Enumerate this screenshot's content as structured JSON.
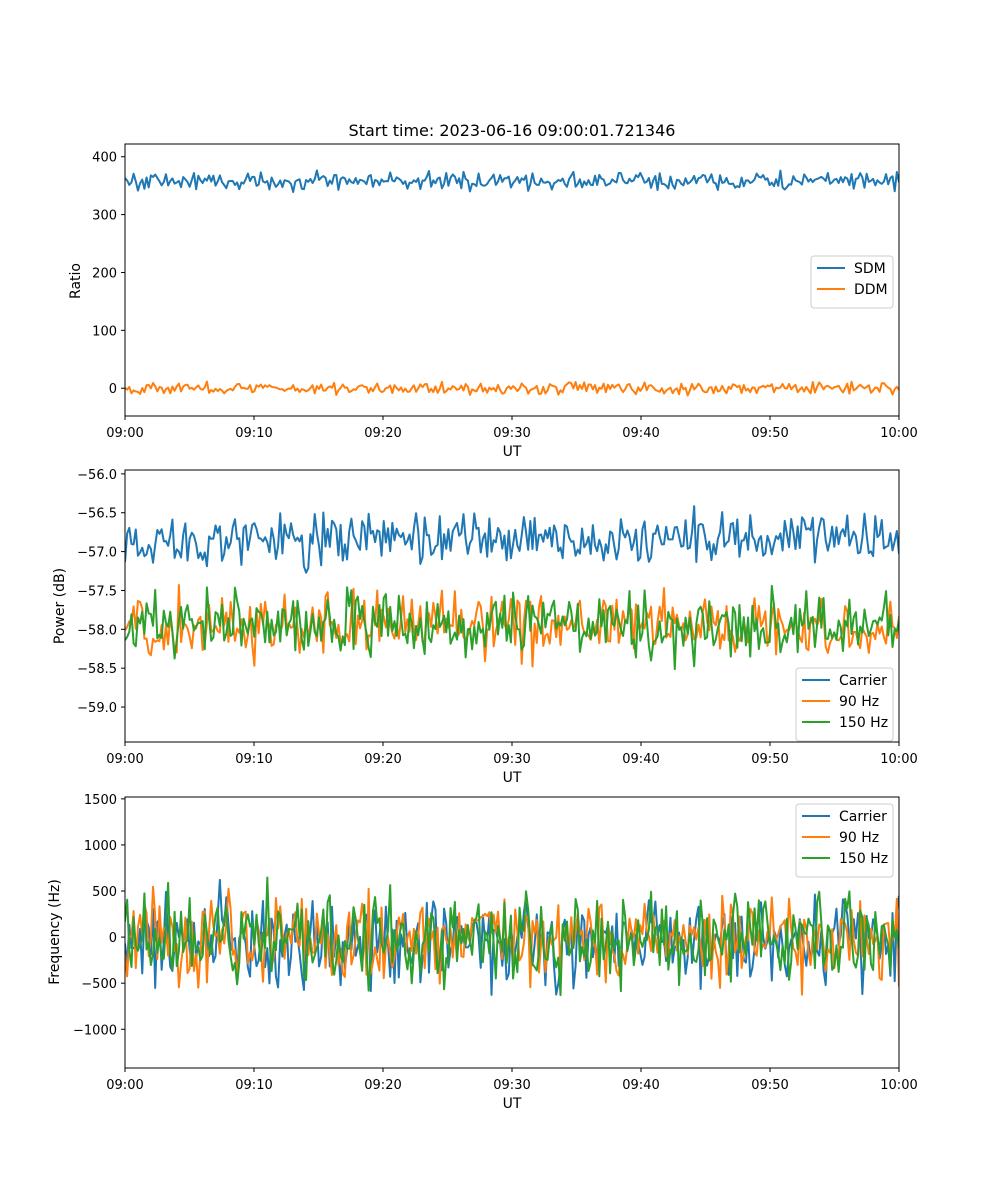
{
  "chart_data": [
    {
      "type": "line",
      "title": "Start time: 2023-06-16 09:00:01.721346",
      "xlabel": "UT",
      "ylabel": "Ratio",
      "x_range": [
        "09:00",
        "10:00"
      ],
      "x_tick_labels": [
        "09:00",
        "09:10",
        "09:20",
        "09:30",
        "09:40",
        "09:50",
        "10:00"
      ],
      "ylim": [
        -48,
        422
      ],
      "y_ticks": [
        0,
        100,
        200,
        300,
        400
      ],
      "y_tick_labels": [
        "0",
        "100",
        "200",
        "300",
        "400"
      ],
      "legend_location": "center-right",
      "legend_order": [
        "SDM",
        "DDM"
      ],
      "grid": false,
      "series": [
        {
          "name": "SDM",
          "color": "#1f77b4",
          "mean": 358,
          "noise_amp": 14,
          "values": []
        },
        {
          "name": "DDM",
          "color": "#ff7f0e",
          "mean": 0,
          "noise_amp": 9,
          "values": []
        }
      ]
    },
    {
      "type": "line",
      "title": "",
      "xlabel": "UT",
      "ylabel": "Power (dB)",
      "x_range": [
        "09:00",
        "10:00"
      ],
      "x_tick_labels": [
        "09:00",
        "09:10",
        "09:20",
        "09:30",
        "09:40",
        "09:50",
        "10:00"
      ],
      "ylim": [
        -59.45,
        -55.95
      ],
      "y_ticks": [
        -59.0,
        -58.5,
        -58.0,
        -57.5,
        -57.0,
        -56.5,
        -56.0
      ],
      "y_tick_labels": [
        "−59.0",
        "−58.5",
        "−58.0",
        "−57.5",
        "−57.0",
        "−56.5",
        "−56.0"
      ],
      "legend_location": "lower-right",
      "legend_order": [
        "Carrier",
        "90 Hz",
        "150 Hz"
      ],
      "grid": false,
      "series": [
        {
          "name": "Carrier",
          "color": "#1f77b4",
          "mean": -56.85,
          "noise_amp": 0.3,
          "values": []
        },
        {
          "name": "90 Hz",
          "color": "#ff7f0e",
          "mean": -57.95,
          "noise_amp": 0.35,
          "values": []
        },
        {
          "name": "150 Hz",
          "color": "#2ca02c",
          "mean": -57.95,
          "noise_amp": 0.38,
          "values": []
        }
      ]
    },
    {
      "type": "line",
      "title": "",
      "xlabel": "UT",
      "ylabel": "Frequency (Hz)",
      "x_range": [
        "09:00",
        "10:00"
      ],
      "x_tick_labels": [
        "09:00",
        "09:10",
        "09:20",
        "09:30",
        "09:40",
        "09:50",
        "10:00"
      ],
      "ylim": [
        -1420,
        1520
      ],
      "y_ticks": [
        -1000,
        -500,
        0,
        500,
        1000,
        1500
      ],
      "y_tick_labels": [
        "−1000",
        "−500",
        "0",
        "500",
        "1000",
        "1500"
      ],
      "legend_location": "upper-right",
      "legend_order": [
        "Carrier",
        "90 Hz",
        "150 Hz"
      ],
      "grid": false,
      "series": [
        {
          "name": "Carrier",
          "color": "#1f77b4",
          "mean": -40,
          "noise_amp": 420,
          "values": []
        },
        {
          "name": "90 Hz",
          "color": "#ff7f0e",
          "mean": -20,
          "noise_amp": 430,
          "values": []
        },
        {
          "name": "150 Hz",
          "color": "#2ca02c",
          "mean": 0,
          "noise_amp": 440,
          "values": []
        }
      ]
    }
  ]
}
